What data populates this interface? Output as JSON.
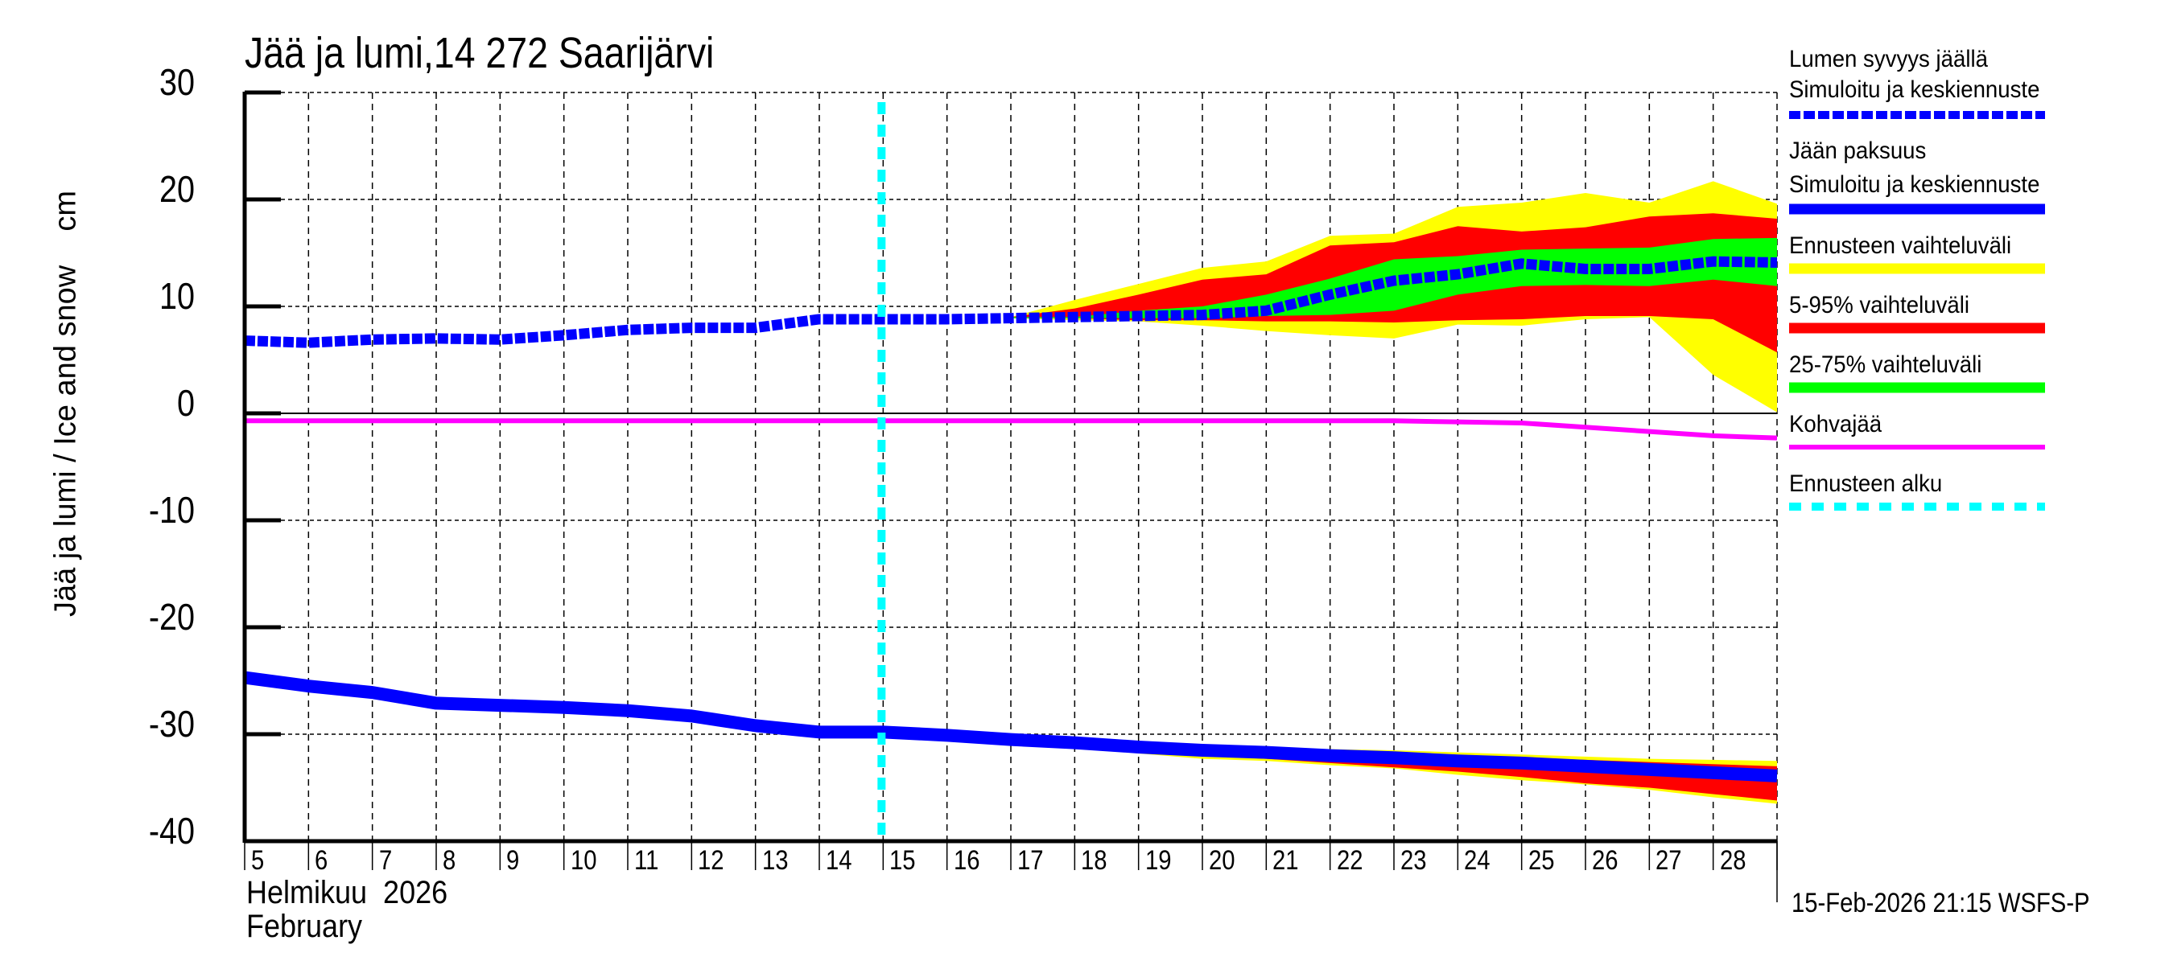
{
  "title": "Jää ja lumi,14 272 Saarijärvi",
  "y_axis_label": "Jää ja lumi / Ice and snow    cm",
  "x_axis": {
    "month_fi": "Helmikuu  2026",
    "month_en": "February",
    "day_labels": [
      "5",
      "6",
      "7",
      "8",
      "9",
      "10",
      "11",
      "12",
      "13",
      "14",
      "15",
      "16",
      "17",
      "18",
      "19",
      "20",
      "21",
      "22",
      "23",
      "24",
      "25",
      "26",
      "27",
      "28"
    ]
  },
  "y_ticks": [
    "30",
    "20",
    "10",
    "0",
    "-10",
    "-20",
    "-30",
    "-40"
  ],
  "timestamp": "15-Feb-2026 21:15 WSFS-P",
  "legend": [
    {
      "id": "snow",
      "line1": "Lumen syvyys jäällä",
      "line2": "Simuloitu ja keskiennuste",
      "color": "#0000ff",
      "style": "dotted"
    },
    {
      "id": "ice",
      "line1": "Jään paksuus",
      "line2": "Simuloitu ja keskiennuste",
      "color": "#0000ff",
      "style": "solid"
    },
    {
      "id": "range",
      "line1": "Ennusteen vaihteluväli",
      "color": "#ffff00",
      "style": "band"
    },
    {
      "id": "p5_95",
      "line1": "5-95% vaihteluväli",
      "color": "#ff0000",
      "style": "band"
    },
    {
      "id": "p25_75",
      "line1": "25-75% vaihteluväli",
      "color": "#00ff00",
      "style": "band"
    },
    {
      "id": "slush",
      "line1": "Kohvajää",
      "color": "#ff00ff",
      "style": "thin"
    },
    {
      "id": "fc_start",
      "line1": "Ennusteen alku",
      "color": "#00ffff",
      "style": "dashed"
    }
  ],
  "chart_data": {
    "type": "line",
    "title": "Jää ja lumi,14 272 Saarijärvi",
    "xlabel": "Helmikuu 2026 / February",
    "ylabel": "Jää ja lumi / Ice and snow cm",
    "ylim": [
      -40,
      30
    ],
    "xlim": [
      5,
      29
    ],
    "grid": true,
    "legend_position": "right",
    "forecast_start_day": 15,
    "x": [
      5,
      6,
      7,
      8,
      9,
      10,
      11,
      12,
      13,
      14,
      15,
      16,
      17,
      18,
      19,
      20,
      21,
      22,
      23,
      24,
      25,
      26,
      27,
      28,
      29
    ],
    "series": [
      {
        "name": "Lumen syvyys jäällä (simuloitu ja keskiennuste)",
        "color": "#0000ff",
        "values": [
          6.8,
          6.6,
          6.9,
          7.0,
          6.9,
          7.3,
          7.8,
          8.0,
          8.0,
          8.8,
          8.8,
          8.8,
          8.9,
          9.0,
          9.1,
          9.2,
          9.6,
          11.1,
          12.4,
          13.0,
          14.0,
          13.5,
          13.5,
          14.2,
          14.1
        ]
      },
      {
        "name": "Jään paksuus (simuloitu ja keskiennuste)",
        "color": "#0000ff",
        "values": [
          -24.7,
          -25.5,
          -26.1,
          -27.1,
          -27.3,
          -27.5,
          -27.8,
          -28.3,
          -29.2,
          -29.8,
          -29.8,
          -30.1,
          -30.5,
          -30.8,
          -31.2,
          -31.5,
          -31.7,
          -32.0,
          -32.2,
          -32.5,
          -32.7,
          -33.0,
          -33.3,
          -33.6,
          -33.9
        ]
      },
      {
        "name": "Kohvajää",
        "color": "#ff00ff",
        "values": [
          -0.7,
          -0.7,
          -0.7,
          -0.7,
          -0.7,
          -0.7,
          -0.7,
          -0.7,
          -0.7,
          -0.7,
          -0.7,
          -0.7,
          -0.7,
          -0.7,
          -0.7,
          -0.7,
          -0.7,
          -0.7,
          -0.7,
          -0.8,
          -0.9,
          -1.3,
          -1.7,
          -2.1,
          -2.3
        ]
      }
    ],
    "bands": {
      "x": [
        17,
        18,
        19,
        20,
        21,
        22,
        23,
        24,
        25,
        26,
        27,
        28,
        29
      ],
      "snow": {
        "range": {
          "color": "#ffff00",
          "upper": [
            9.0,
            10.6,
            12.1,
            13.6,
            14.2,
            16.6,
            16.8,
            19.3,
            19.7,
            20.6,
            19.7,
            21.7,
            19.6
          ],
          "lower": [
            8.9,
            8.7,
            8.6,
            8.2,
            7.7,
            7.3,
            7.0,
            8.3,
            8.2,
            8.8,
            9.0,
            3.6,
            0.1
          ]
        },
        "p5_95": {
          "color": "#ff0000",
          "upper": [
            9.0,
            9.8,
            11.1,
            12.5,
            13.0,
            15.7,
            16.0,
            17.5,
            17.0,
            17.4,
            18.4,
            18.7,
            18.2
          ],
          "lower": [
            8.9,
            8.9,
            8.7,
            8.7,
            8.6,
            8.6,
            8.5,
            8.7,
            8.8,
            9.1,
            9.1,
            8.8,
            5.7
          ]
        },
        "p25_75": {
          "color": "#00ff00",
          "upper": [
            9.0,
            9.0,
            9.6,
            10.0,
            11.1,
            12.6,
            14.4,
            14.7,
            15.3,
            15.4,
            15.5,
            16.3,
            16.4
          ],
          "lower": [
            8.9,
            8.9,
            8.9,
            8.9,
            9.1,
            9.2,
            9.6,
            11.1,
            11.9,
            12.0,
            11.9,
            12.5,
            11.9
          ]
        }
      },
      "ice": {
        "range": {
          "color": "#ffff00",
          "upper": [
            -30.4,
            -30.7,
            -31.0,
            -31.2,
            -31.3,
            -31.4,
            -31.5,
            -31.7,
            -31.9,
            -32.1,
            -32.3,
            -32.4,
            -32.5
          ],
          "lower": [
            -30.6,
            -31.0,
            -31.8,
            -32.3,
            -32.5,
            -32.9,
            -33.2,
            -33.8,
            -34.3,
            -34.7,
            -35.2,
            -35.9,
            -36.5
          ]
        },
        "p5_95": {
          "color": "#ff0000",
          "upper": [
            -30.4,
            -30.7,
            -31.0,
            -31.3,
            -31.4,
            -31.5,
            -31.7,
            -32.0,
            -32.2,
            -32.4,
            -32.6,
            -32.8,
            -33.0
          ],
          "lower": [
            -30.6,
            -31.0,
            -31.6,
            -32.0,
            -32.3,
            -32.7,
            -33.1,
            -33.5,
            -34.0,
            -34.6,
            -35.0,
            -35.6,
            -36.2
          ]
        },
        "p25_75": {
          "color": "#00ff00",
          "upper": [
            -30.5,
            -30.8,
            -31.2,
            -31.5,
            -31.7,
            -32.0,
            -32.2,
            -32.5,
            -32.7,
            -33.0,
            -33.2,
            -33.4,
            -33.6
          ],
          "lower": [
            -30.5,
            -30.8,
            -31.2,
            -31.5,
            -31.7,
            -32.0,
            -32.2,
            -32.5,
            -32.7,
            -33.0,
            -33.4,
            -33.8,
            -34.2
          ]
        }
      }
    }
  }
}
